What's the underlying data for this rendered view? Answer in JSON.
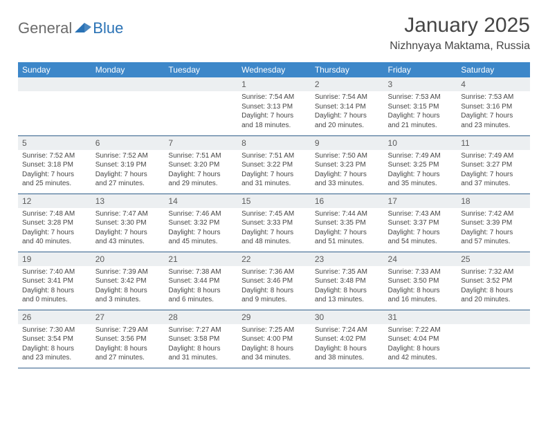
{
  "logo": {
    "general": "General",
    "blue": "Blue"
  },
  "title": "January 2025",
  "location": "Nizhnyaya Maktama, Russia",
  "day_header_bg": "#3d87c9",
  "day_header_fg": "#ffffff",
  "dayhead_bg": "#eceff1",
  "cell_border": "#2f5e8a",
  "text_color": "#454545",
  "weekdays": [
    "Sunday",
    "Monday",
    "Tuesday",
    "Wednesday",
    "Thursday",
    "Friday",
    "Saturday"
  ],
  "weeks": [
    [
      null,
      null,
      null,
      {
        "n": "1",
        "sunrise": "7:54 AM",
        "sunset": "3:13 PM",
        "dl": "7 hours and 18 minutes."
      },
      {
        "n": "2",
        "sunrise": "7:54 AM",
        "sunset": "3:14 PM",
        "dl": "7 hours and 20 minutes."
      },
      {
        "n": "3",
        "sunrise": "7:53 AM",
        "sunset": "3:15 PM",
        "dl": "7 hours and 21 minutes."
      },
      {
        "n": "4",
        "sunrise": "7:53 AM",
        "sunset": "3:16 PM",
        "dl": "7 hours and 23 minutes."
      }
    ],
    [
      {
        "n": "5",
        "sunrise": "7:52 AM",
        "sunset": "3:18 PM",
        "dl": "7 hours and 25 minutes."
      },
      {
        "n": "6",
        "sunrise": "7:52 AM",
        "sunset": "3:19 PM",
        "dl": "7 hours and 27 minutes."
      },
      {
        "n": "7",
        "sunrise": "7:51 AM",
        "sunset": "3:20 PM",
        "dl": "7 hours and 29 minutes."
      },
      {
        "n": "8",
        "sunrise": "7:51 AM",
        "sunset": "3:22 PM",
        "dl": "7 hours and 31 minutes."
      },
      {
        "n": "9",
        "sunrise": "7:50 AM",
        "sunset": "3:23 PM",
        "dl": "7 hours and 33 minutes."
      },
      {
        "n": "10",
        "sunrise": "7:49 AM",
        "sunset": "3:25 PM",
        "dl": "7 hours and 35 minutes."
      },
      {
        "n": "11",
        "sunrise": "7:49 AM",
        "sunset": "3:27 PM",
        "dl": "7 hours and 37 minutes."
      }
    ],
    [
      {
        "n": "12",
        "sunrise": "7:48 AM",
        "sunset": "3:28 PM",
        "dl": "7 hours and 40 minutes."
      },
      {
        "n": "13",
        "sunrise": "7:47 AM",
        "sunset": "3:30 PM",
        "dl": "7 hours and 43 minutes."
      },
      {
        "n": "14",
        "sunrise": "7:46 AM",
        "sunset": "3:32 PM",
        "dl": "7 hours and 45 minutes."
      },
      {
        "n": "15",
        "sunrise": "7:45 AM",
        "sunset": "3:33 PM",
        "dl": "7 hours and 48 minutes."
      },
      {
        "n": "16",
        "sunrise": "7:44 AM",
        "sunset": "3:35 PM",
        "dl": "7 hours and 51 minutes."
      },
      {
        "n": "17",
        "sunrise": "7:43 AM",
        "sunset": "3:37 PM",
        "dl": "7 hours and 54 minutes."
      },
      {
        "n": "18",
        "sunrise": "7:42 AM",
        "sunset": "3:39 PM",
        "dl": "7 hours and 57 minutes."
      }
    ],
    [
      {
        "n": "19",
        "sunrise": "7:40 AM",
        "sunset": "3:41 PM",
        "dl": "8 hours and 0 minutes."
      },
      {
        "n": "20",
        "sunrise": "7:39 AM",
        "sunset": "3:42 PM",
        "dl": "8 hours and 3 minutes."
      },
      {
        "n": "21",
        "sunrise": "7:38 AM",
        "sunset": "3:44 PM",
        "dl": "8 hours and 6 minutes."
      },
      {
        "n": "22",
        "sunrise": "7:36 AM",
        "sunset": "3:46 PM",
        "dl": "8 hours and 9 minutes."
      },
      {
        "n": "23",
        "sunrise": "7:35 AM",
        "sunset": "3:48 PM",
        "dl": "8 hours and 13 minutes."
      },
      {
        "n": "24",
        "sunrise": "7:33 AM",
        "sunset": "3:50 PM",
        "dl": "8 hours and 16 minutes."
      },
      {
        "n": "25",
        "sunrise": "7:32 AM",
        "sunset": "3:52 PM",
        "dl": "8 hours and 20 minutes."
      }
    ],
    [
      {
        "n": "26",
        "sunrise": "7:30 AM",
        "sunset": "3:54 PM",
        "dl": "8 hours and 23 minutes."
      },
      {
        "n": "27",
        "sunrise": "7:29 AM",
        "sunset": "3:56 PM",
        "dl": "8 hours and 27 minutes."
      },
      {
        "n": "28",
        "sunrise": "7:27 AM",
        "sunset": "3:58 PM",
        "dl": "8 hours and 31 minutes."
      },
      {
        "n": "29",
        "sunrise": "7:25 AM",
        "sunset": "4:00 PM",
        "dl": "8 hours and 34 minutes."
      },
      {
        "n": "30",
        "sunrise": "7:24 AM",
        "sunset": "4:02 PM",
        "dl": "8 hours and 38 minutes."
      },
      {
        "n": "31",
        "sunrise": "7:22 AM",
        "sunset": "4:04 PM",
        "dl": "8 hours and 42 minutes."
      },
      null
    ]
  ],
  "labels": {
    "sunrise": "Sunrise:",
    "sunset": "Sunset:",
    "daylight": "Daylight:"
  }
}
